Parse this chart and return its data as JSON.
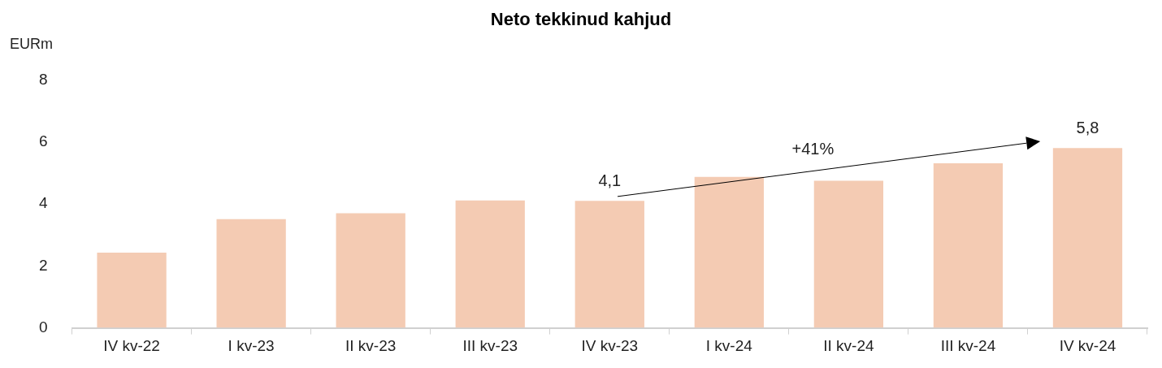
{
  "chart_data": {
    "type": "bar",
    "title": "Neto tekkinud kahjud",
    "ylabel": "EURm",
    "categories": [
      "IV kv-22",
      "I kv-23",
      "II kv-23",
      "III kv-23",
      "IV kv-23",
      "I kv-24",
      "II kv-24",
      "III kv-24",
      "IV kv-24"
    ],
    "values": [
      2.43,
      3.51,
      3.7,
      4.11,
      4.1,
      4.87,
      4.75,
      5.31,
      5.8
    ],
    "value_labels": [
      null,
      null,
      null,
      null,
      "4,1",
      null,
      null,
      null,
      "5,8"
    ],
    "color": "#f4cbb3",
    "ylim": [
      0,
      8
    ],
    "yticks": [
      0,
      2,
      4,
      6,
      8
    ],
    "grid": false,
    "legend": false,
    "annotations": [
      "+41%"
    ]
  }
}
